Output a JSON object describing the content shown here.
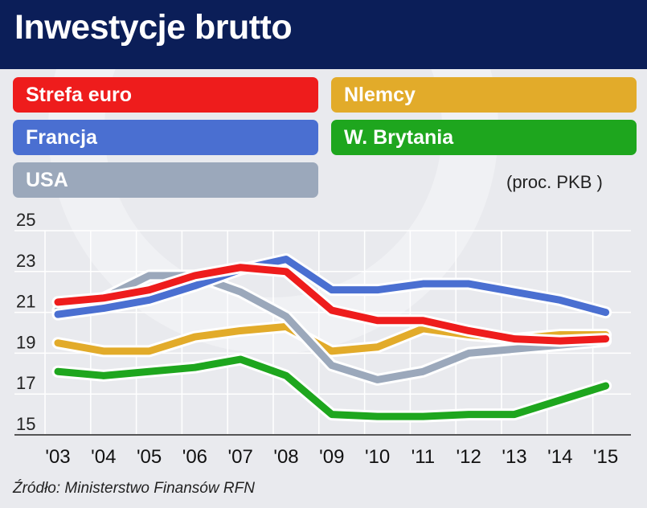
{
  "title": "Inwestycje brutto",
  "unit_label": "(proc. PKB )",
  "source": "Źródło: Ministerstwo Finansów RFN",
  "chart_data": {
    "type": "line",
    "title": "Inwestycje brutto",
    "ylabel": "(proc. PKB )",
    "xlabel": "",
    "categories": [
      "'03",
      "'04",
      "'05",
      "'06",
      "'07",
      "'08",
      "'09",
      "'10",
      "'11",
      "'12",
      "'13",
      "'14",
      "'15"
    ],
    "ylim": [
      15,
      25
    ],
    "yticks": [
      25,
      23,
      21,
      19,
      17,
      15
    ],
    "grid": true,
    "series": [
      {
        "name": "Strefa euro",
        "color": "#ee1c1c",
        "values": [
          21.5,
          21.7,
          22.1,
          22.8,
          23.2,
          23.0,
          21.1,
          20.6,
          20.6,
          20.1,
          19.7,
          19.6,
          19.7
        ]
      },
      {
        "name": "Nlemcy",
        "color": "#e2ab2a",
        "values": [
          19.5,
          19.1,
          19.1,
          19.8,
          20.1,
          20.3,
          19.1,
          19.3,
          20.2,
          19.9,
          19.7,
          19.9,
          19.9
        ]
      },
      {
        "name": "Francja",
        "color": "#4a6fd1",
        "values": [
          20.9,
          21.2,
          21.6,
          22.3,
          23.1,
          23.6,
          22.1,
          22.1,
          22.4,
          22.4,
          22.0,
          21.6,
          21.0
        ]
      },
      {
        "name": "W. Brytania",
        "color": "#1ea61e",
        "values": [
          18.1,
          17.9,
          18.1,
          18.3,
          18.7,
          17.9,
          16.0,
          15.9,
          15.9,
          16.0,
          16.0,
          16.7,
          17.4
        ]
      },
      {
        "name": "USA",
        "color": "#9ba8bb",
        "values": [
          21.1,
          21.7,
          22.8,
          22.8,
          22.0,
          20.8,
          18.4,
          17.7,
          18.1,
          19.0,
          19.2,
          19.4,
          19.6
        ]
      }
    ]
  }
}
